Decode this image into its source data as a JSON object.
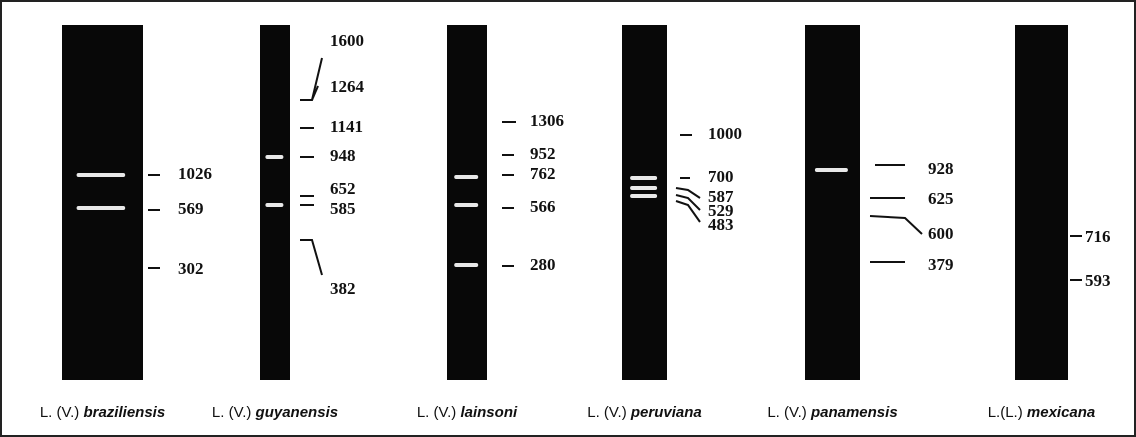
{
  "lanes": [
    {
      "name": {
        "prefix": "L. (V.)",
        "species": "braziliensis"
      },
      "markers": [
        1026,
        569,
        302
      ]
    },
    {
      "name": {
        "prefix": "L. (V.)",
        "species": "guyanensis"
      },
      "markers": [
        1600,
        1264,
        1141,
        948,
        652,
        585,
        382
      ]
    },
    {
      "name": {
        "prefix": "L. (V.)",
        "species": "lainsoni"
      },
      "markers": [
        1306,
        952,
        762,
        566,
        280
      ]
    },
    {
      "name": {
        "prefix": "L. (V.)",
        "species": "peruviana"
      },
      "markers": [
        1000,
        700,
        587,
        529,
        483
      ]
    },
    {
      "name": {
        "prefix": "L. (V.)",
        "species": "panamensis"
      },
      "markers": [
        928,
        625,
        600,
        379
      ]
    },
    {
      "name": {
        "prefix": "L.(L.)",
        "species": "mexicana"
      },
      "markers": [
        716,
        593
      ]
    }
  ]
}
